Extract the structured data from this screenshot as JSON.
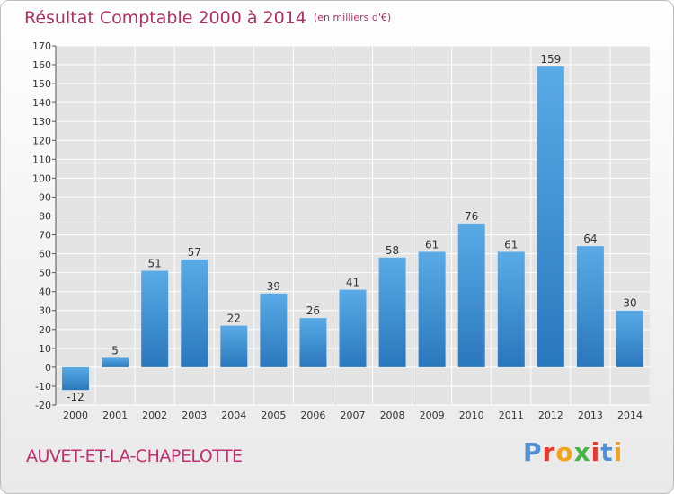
{
  "header": {
    "title": "Résultat Comptable 2000 à 2014",
    "unit": "(en milliers d'€)"
  },
  "commune": "AUVET-ET-LA-CHAPELOTTE",
  "logo": {
    "text": "Proxiti",
    "letter_colors": [
      "#4f8fd6",
      "#e23b2e",
      "#f2a31b",
      "#4bb246",
      "#e23b2e",
      "#4f8fd6",
      "#f2a31b"
    ]
  },
  "colors": {
    "title": "#b03060",
    "bar_top": "#5aaae6",
    "bar_bottom": "#2a78bc",
    "grid": "#ffffff",
    "plot_bg": "#e4e4e4",
    "text": "#333333"
  },
  "chart_data": {
    "type": "bar",
    "title": "Résultat Comptable 2000 à 2014",
    "subtitle": "(en milliers d'€)",
    "xlabel": "",
    "ylabel": "",
    "categories": [
      "2000",
      "2001",
      "2002",
      "2003",
      "2004",
      "2005",
      "2006",
      "2007",
      "2008",
      "2009",
      "2010",
      "2011",
      "2012",
      "2013",
      "2014"
    ],
    "values": [
      -12,
      5,
      51,
      57,
      22,
      39,
      26,
      41,
      58,
      61,
      76,
      61,
      159,
      64,
      30
    ],
    "ylim": [
      -20,
      170
    ],
    "yticks": [
      -20,
      -10,
      0,
      10,
      20,
      30,
      40,
      50,
      60,
      70,
      80,
      90,
      100,
      110,
      120,
      130,
      140,
      150,
      160,
      170
    ],
    "grid": true,
    "legend": "none"
  }
}
